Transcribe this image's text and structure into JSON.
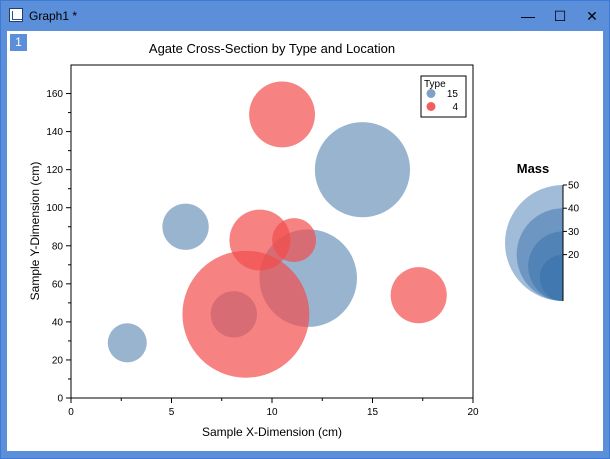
{
  "window": {
    "title": "Graph1 *",
    "layer_label": "1",
    "minimize_glyph": "—",
    "maximize_glyph": "☐",
    "close_glyph": "✕"
  },
  "chart_data": {
    "type": "scatter",
    "title": "Agate Cross-Section by Type and Location",
    "xlabel": "Sample X-Dimension (cm)",
    "ylabel": "Sample Y-Dimension (cm)",
    "xlim": [
      0,
      20
    ],
    "ylim": [
      0,
      175
    ],
    "x_ticks": [
      0,
      5,
      10,
      15,
      20
    ],
    "y_ticks": [
      0,
      20,
      40,
      60,
      80,
      100,
      120,
      140,
      160
    ],
    "grid": false,
    "legend": {
      "title": "Type",
      "position": "top-right"
    },
    "series": [
      {
        "name": "15",
        "color": "#7297bd",
        "opacity": 0.72,
        "points": [
          {
            "x": 2.8,
            "y": 29,
            "size": 16
          },
          {
            "x": 5.7,
            "y": 90,
            "size": 19
          },
          {
            "x": 8.1,
            "y": 44,
            "size": 19
          },
          {
            "x": 11.8,
            "y": 63,
            "size": 40
          },
          {
            "x": 14.5,
            "y": 120,
            "size": 39
          }
        ]
      },
      {
        "name": "4",
        "color": "#f24d4d",
        "opacity": 0.7,
        "points": [
          {
            "x": 8.7,
            "y": 44,
            "size": 52
          },
          {
            "x": 9.4,
            "y": 83,
            "size": 25
          },
          {
            "x": 11.1,
            "y": 83,
            "size": 18
          },
          {
            "x": 10.5,
            "y": 149,
            "size": 27
          },
          {
            "x": 17.3,
            "y": 54,
            "size": 23
          }
        ]
      }
    ],
    "size_legend": {
      "title": "Mass",
      "values": [
        20,
        30,
        40,
        50
      ],
      "color": "#2f6aa8"
    }
  }
}
